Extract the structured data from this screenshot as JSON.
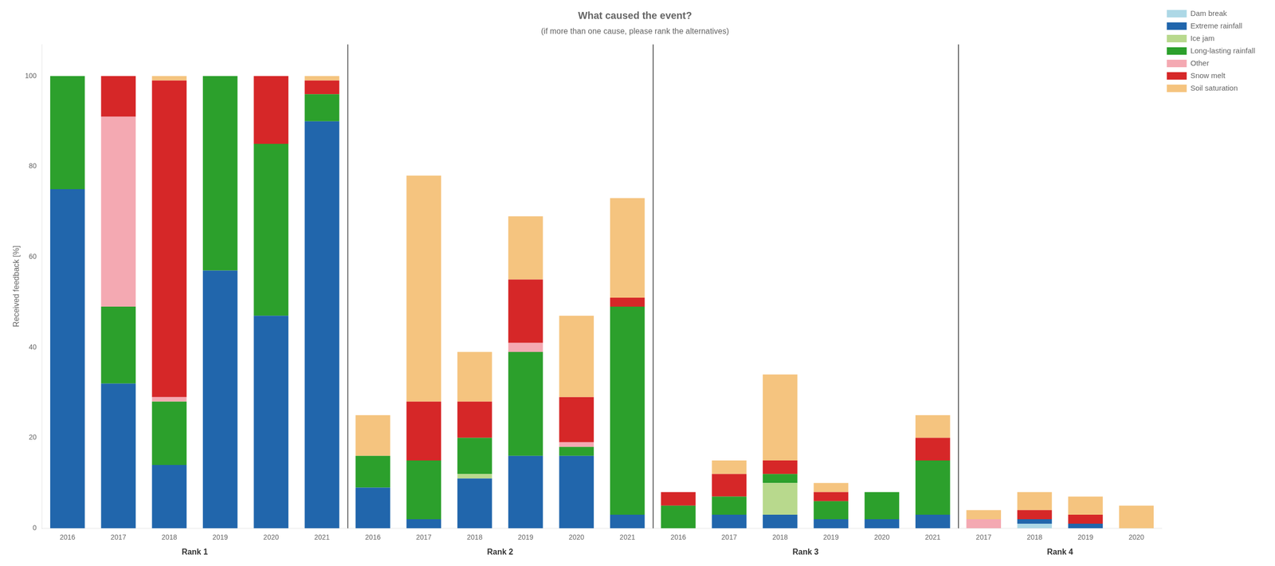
{
  "chart_data": {
    "type": "bar",
    "title": "What caused the event?",
    "subtitle": "(if more than one cause, please rank the alternatives)",
    "y_label": "Received feedback [%]",
    "categories": [
      "2016",
      "2017",
      "2018",
      "2019",
      "2020",
      "2021",
      "2016",
      "2017",
      "2018",
      "2019",
      "2020",
      "2021",
      "2016",
      "2017",
      "2018",
      "2019",
      "2020",
      "2021",
      "2017",
      "2018",
      "2019",
      "2020"
    ],
    "groups": [
      "Rank 1",
      "Rank 1",
      "Rank 1",
      "Rank 1",
      "Rank 1",
      "Rank 1",
      "Rank 2",
      "Rank 2",
      "Rank 2",
      "Rank 2",
      "Rank 2",
      "Rank 2",
      "Rank 3",
      "Rank 3",
      "Rank 3",
      "Rank 3",
      "Rank 3",
      "Rank 3",
      "Rank 4",
      "Rank 4",
      "Rank 4",
      "Rank 4"
    ],
    "series": [
      {
        "name": "Dam break",
        "color": "#add8e6",
        "values": [
          0,
          0,
          0,
          0,
          0,
          0,
          0,
          0,
          0,
          0,
          0,
          0,
          0,
          0,
          0,
          0,
          0,
          0,
          0,
          1,
          0,
          0
        ]
      },
      {
        "name": "Extreme rainfall",
        "color": "#2166ac",
        "values": [
          75,
          32,
          14,
          57,
          47,
          90,
          9,
          2,
          11,
          16,
          16,
          3,
          0,
          3,
          3,
          2,
          2,
          3,
          0,
          1,
          1,
          0
        ]
      },
      {
        "name": "Ice jam",
        "color": "#b8d98d",
        "values": [
          0,
          0,
          0,
          0,
          0,
          0,
          0,
          0,
          1,
          0,
          0,
          0,
          0,
          0,
          7,
          0,
          0,
          0,
          0,
          0,
          0,
          0
        ]
      },
      {
        "name": "Long-lasting rainfall",
        "color": "#2ca02c",
        "values": [
          25,
          17,
          14,
          43,
          38,
          6,
          7,
          13,
          8,
          23,
          2,
          46,
          5,
          4,
          2,
          4,
          6,
          12,
          0,
          0,
          0,
          0
        ]
      },
      {
        "name": "Other",
        "color": "#f4a9b2",
        "values": [
          0,
          42,
          1,
          0,
          0,
          0,
          0,
          0,
          0,
          2,
          1,
          0,
          0,
          0,
          0,
          0,
          0,
          0,
          2,
          0,
          0,
          0
        ]
      },
      {
        "name": "Snow melt",
        "color": "#d62728",
        "values": [
          0,
          9,
          70,
          0,
          15,
          3,
          0,
          13,
          8,
          14,
          10,
          2,
          3,
          5,
          3,
          2,
          0,
          5,
          0,
          2,
          2,
          0
        ]
      },
      {
        "name": "Soil saturation",
        "color": "#f5c47f",
        "values": [
          0,
          0,
          1,
          0,
          0,
          1,
          9,
          50,
          11,
          14,
          18,
          22,
          0,
          3,
          19,
          2,
          0,
          5,
          2,
          4,
          4,
          5
        ]
      }
    ],
    "stacked": true,
    "ylim": [
      0,
      107
    ],
    "yticks": [
      0,
      20,
      40,
      60,
      80,
      100
    ],
    "grid": false,
    "legend": "upper right"
  }
}
